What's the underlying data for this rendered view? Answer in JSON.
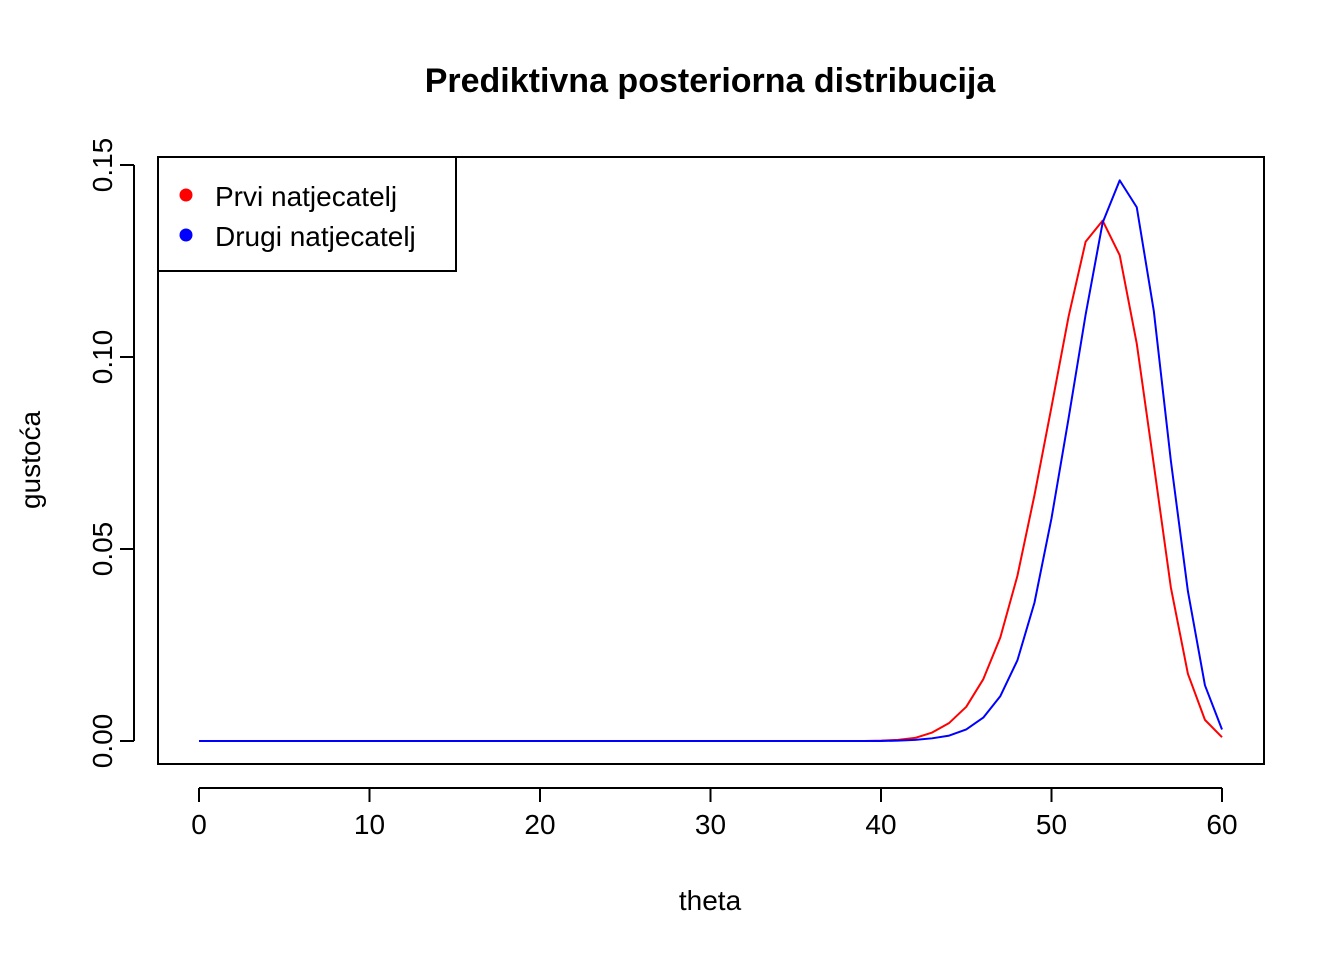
{
  "chart_data": {
    "type": "line",
    "title": "Prediktivna posteriorna distribucija",
    "xlabel": "theta",
    "ylabel": "gustoća",
    "xlim": [
      0,
      60
    ],
    "ylim": [
      0,
      0.15
    ],
    "xticks": [
      "0",
      "10",
      "20",
      "30",
      "40",
      "50",
      "60"
    ],
    "yticks": [
      "0.00",
      "0.05",
      "0.10",
      "0.15"
    ],
    "grid": false,
    "legend_position": "top-left",
    "x": [
      0,
      1,
      2,
      3,
      4,
      5,
      6,
      7,
      8,
      9,
      10,
      11,
      12,
      13,
      14,
      15,
      16,
      17,
      18,
      19,
      20,
      21,
      22,
      23,
      24,
      25,
      26,
      27,
      28,
      29,
      30,
      31,
      32,
      33,
      34,
      35,
      36,
      37,
      38,
      39,
      40,
      41,
      42,
      43,
      44,
      45,
      46,
      47,
      48,
      49,
      50,
      51,
      52,
      53,
      54,
      55,
      56,
      57,
      58,
      59,
      60
    ],
    "series": [
      {
        "name": "Prvi natjecatelj",
        "color": "#ff0000",
        "values": [
          0,
          0,
          0,
          0,
          0,
          0,
          0,
          0,
          0,
          0,
          0,
          0,
          0,
          0,
          0,
          0,
          0,
          0,
          0,
          0,
          0,
          0,
          0,
          0,
          0,
          0,
          0,
          0,
          0,
          0,
          0,
          0,
          0,
          0,
          0,
          0,
          0,
          0,
          0,
          0,
          0.0001,
          0.0003,
          0.0008,
          0.0022,
          0.0047,
          0.0089,
          0.0161,
          0.027,
          0.043,
          0.064,
          0.087,
          0.1105,
          0.13,
          0.1355,
          0.1265,
          0.1035,
          0.072,
          0.04,
          0.0175,
          0.0055,
          0.001
        ]
      },
      {
        "name": "Drugi natjecatelj",
        "color": "#0000ff",
        "values": [
          0,
          0,
          0,
          0,
          0,
          0,
          0,
          0,
          0,
          0,
          0,
          0,
          0,
          0,
          0,
          0,
          0,
          0,
          0,
          0,
          0,
          0,
          0,
          0,
          0,
          0,
          0,
          0,
          0,
          0,
          0,
          0,
          0,
          0,
          0,
          0,
          0,
          0,
          0,
          0,
          0,
          0.0001,
          0.0003,
          0.0007,
          0.0014,
          0.003,
          0.0061,
          0.0117,
          0.021,
          0.036,
          0.058,
          0.084,
          0.111,
          0.135,
          0.146,
          0.139,
          0.112,
          0.073,
          0.039,
          0.0145,
          0.003
        ]
      }
    ]
  }
}
